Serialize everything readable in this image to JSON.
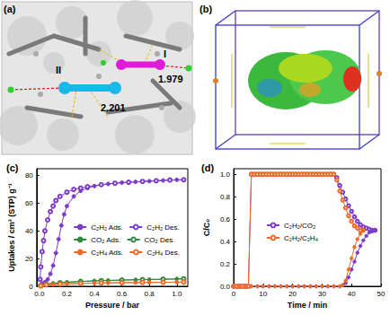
{
  "figure_panels": [
    {
      "label": "(a)",
      "annotations": [
        "I",
        "II",
        "1.979",
        "2.201"
      ]
    },
    {
      "label": "(b)"
    }
  ],
  "chart_data": [
    {
      "type": "line",
      "title": "(c)",
      "x_label": "Pressure / bar",
      "y_label": "Uptakes / cm³ (STP) g⁻¹",
      "xlim": [
        -0.02,
        1.08
      ],
      "xticks": [
        {
          "value": 0,
          "label": "0.0"
        },
        {
          "value": 0.2,
          "label": "0.2"
        },
        {
          "value": 0.4,
          "label": "0.4"
        },
        {
          "value": 0.6,
          "label": "0.6"
        },
        {
          "value": 0.8,
          "label": "0.8"
        },
        {
          "value": 1,
          "label": "1.0"
        }
      ],
      "ylim": [
        0,
        85
      ],
      "yticks": [
        0,
        20,
        40,
        60,
        80
      ],
      "grid": false,
      "legend": "right",
      "series": [
        {
          "name": "C₂H₂ Ads.",
          "color": "#7d3cc8",
          "marker": "circle",
          "x": [
            0.005,
            0.01,
            0.02,
            0.04,
            0.06,
            0.08,
            0.1,
            0.12,
            0.14,
            0.16,
            0.18,
            0.2,
            0.25,
            0.3,
            0.35,
            0.4,
            0.5,
            0.6,
            0.7,
            0.8,
            0.9,
            1.0,
            1.05
          ],
          "values": [
            0.5,
            1,
            2,
            3,
            5,
            9,
            15,
            24,
            34,
            44,
            52,
            58,
            65,
            69,
            71,
            72.5,
            74,
            75,
            75.5,
            76,
            76.5,
            77,
            77
          ]
        },
        {
          "name": "C₂H₂ Des.",
          "color": "#7d3cc8",
          "marker": "open_circle",
          "x": [
            1.05,
            0.95,
            0.85,
            0.75,
            0.65,
            0.55,
            0.45,
            0.35,
            0.3,
            0.25,
            0.2,
            0.15,
            0.12,
            0.1,
            0.08,
            0.06,
            0.04,
            0.03,
            0.02,
            0.01,
            0.005
          ],
          "values": [
            77,
            76.8,
            76.3,
            75.8,
            75.2,
            74.5,
            73.5,
            72,
            71,
            70,
            68,
            65,
            62,
            58,
            54,
            48,
            40,
            33,
            25,
            14,
            5
          ]
        },
        {
          "name": "CO₂ Ads.",
          "color": "#2e8b3c",
          "marker": "circle",
          "x": [
            0.005,
            0.02,
            0.05,
            0.1,
            0.2,
            0.3,
            0.4,
            0.5,
            0.6,
            0.7,
            0.8,
            0.9,
            1.0,
            1.05
          ],
          "values": [
            0.3,
            0.8,
            1.5,
            2.2,
            3,
            3.5,
            3.9,
            4.2,
            4.5,
            4.7,
            4.9,
            5.1,
            5.3,
            5.4
          ]
        },
        {
          "name": "CO₂ Des.",
          "color": "#2e8b3c",
          "marker": "open_circle",
          "x": [
            1.05,
            0.9,
            0.75,
            0.6,
            0.45,
            0.3,
            0.15,
            0.05,
            0.01
          ],
          "values": [
            5.4,
            5.1,
            4.8,
            4.5,
            4.1,
            3.5,
            2.6,
            1.5,
            0.5
          ]
        },
        {
          "name": "C₂H₄ Ads.",
          "color": "#f06a28",
          "marker": "circle",
          "x": [
            0.005,
            0.02,
            0.05,
            0.1,
            0.2,
            0.3,
            0.4,
            0.5,
            0.6,
            0.7,
            0.8,
            0.9,
            1.0,
            1.05
          ],
          "values": [
            0.2,
            0.5,
            0.9,
            1.3,
            1.8,
            2.1,
            2.3,
            2.5,
            2.6,
            2.7,
            2.8,
            2.9,
            3.0,
            3.0
          ]
        },
        {
          "name": "C₂H₄ Des.",
          "color": "#f06a28",
          "marker": "open_circle",
          "x": [
            1.05,
            0.9,
            0.75,
            0.6,
            0.45,
            0.3,
            0.15,
            0.05,
            0.01
          ],
          "values": [
            3.0,
            2.9,
            2.8,
            2.6,
            2.4,
            2.1,
            1.6,
            1.0,
            0.3
          ]
        }
      ]
    },
    {
      "type": "line",
      "title": "(d)",
      "x_label": "Time / min",
      "y_label": "C/C₀",
      "xlim": [
        0,
        50
      ],
      "xticks": [
        0,
        10,
        20,
        30,
        40,
        50
      ],
      "ylim": [
        0,
        1.05
      ],
      "yticks": [
        {
          "value": 0,
          "label": "0.0"
        },
        {
          "value": 0.2,
          "label": "0.2"
        },
        {
          "value": 0.4,
          "label": "0.4"
        },
        {
          "value": 0.6,
          "label": "0.6"
        },
        {
          "value": 0.8,
          "label": "0.8"
        },
        {
          "value": 1,
          "label": "1.0"
        }
      ],
      "grid": false,
      "legend": "left",
      "series": [
        {
          "name": "C₂H₂/CO₂",
          "color": "#7d3cc8",
          "marker": "open_circle",
          "x": [
            0,
            1,
            2,
            3,
            4,
            5,
            6,
            7,
            8,
            9,
            10,
            11,
            12,
            13,
            14,
            15,
            16,
            17,
            18,
            19,
            20,
            21,
            22,
            23,
            24,
            25,
            26,
            27,
            28,
            29,
            30,
            31,
            32,
            33,
            34,
            35,
            36,
            37,
            38,
            39,
            40,
            41,
            42,
            43,
            44,
            45,
            46,
            47,
            48
          ],
          "values": [
            0,
            0,
            0,
            0,
            0,
            0,
            1,
            1,
            1,
            1,
            1,
            1,
            1,
            1,
            1,
            1,
            1,
            1,
            1,
            1,
            1,
            1,
            1,
            1,
            1,
            1,
            1,
            1,
            1,
            1,
            1,
            1,
            1,
            1,
            1,
            0.97,
            0.9,
            0.84,
            0.78,
            0.72,
            0.67,
            0.62,
            0.58,
            0.55,
            0.53,
            0.52,
            0.51,
            0.5,
            0.5
          ]
        },
        {
          "name": "C₂H₂/CO₂",
          "color": "#7d3cc8",
          "marker": "circle",
          "x": [
            0,
            2,
            4,
            6,
            8,
            10,
            12,
            14,
            16,
            18,
            20,
            22,
            24,
            26,
            28,
            30,
            32,
            34,
            36,
            37,
            38,
            39,
            40,
            41,
            42,
            43,
            44,
            45,
            46,
            47,
            48
          ],
          "values": [
            0,
            0,
            0,
            0,
            0,
            0,
            0,
            0,
            0,
            0,
            0,
            0,
            0,
            0,
            0,
            0,
            0,
            0,
            0,
            0.01,
            0.03,
            0.08,
            0.15,
            0.22,
            0.3,
            0.36,
            0.41,
            0.45,
            0.48,
            0.49,
            0.5
          ]
        },
        {
          "name": "C₂H₂/C₂H₄",
          "color": "#f06a28",
          "marker": "open_circle",
          "x": [
            0,
            1,
            2,
            3,
            4,
            5,
            6,
            7,
            8,
            9,
            10,
            11,
            12,
            13,
            14,
            15,
            16,
            17,
            18,
            19,
            20,
            21,
            22,
            23,
            24,
            25,
            26,
            27,
            28,
            29,
            30,
            31,
            32,
            33,
            34,
            35,
            36,
            37,
            38,
            39,
            40,
            41,
            42,
            43,
            44
          ],
          "values": [
            0,
            0,
            0,
            0,
            0,
            0,
            1,
            1,
            1,
            1,
            1,
            1,
            1,
            1,
            1,
            1,
            1,
            1,
            1,
            1,
            1,
            1,
            1,
            1,
            1,
            1,
            1,
            1,
            1,
            1,
            1,
            1,
            1,
            1,
            1,
            0.95,
            0.85,
            0.77,
            0.7,
            0.63,
            0.58,
            0.54,
            0.52,
            0.5,
            0.5
          ]
        },
        {
          "name": "C₂H₂/C₂H₄",
          "color": "#f06a28",
          "marker": "circle",
          "x": [
            0,
            2,
            4,
            6,
            8,
            10,
            12,
            14,
            16,
            18,
            20,
            22,
            24,
            26,
            28,
            30,
            32,
            34,
            36,
            37,
            38,
            39,
            40,
            41,
            42,
            43,
            44
          ],
          "values": [
            0,
            0,
            0,
            0,
            0,
            0,
            0,
            0,
            0,
            0,
            0,
            0,
            0,
            0,
            0,
            0,
            0,
            0,
            0,
            0.01,
            0.05,
            0.15,
            0.25,
            0.35,
            0.42,
            0.47,
            0.5
          ]
        }
      ]
    }
  ]
}
